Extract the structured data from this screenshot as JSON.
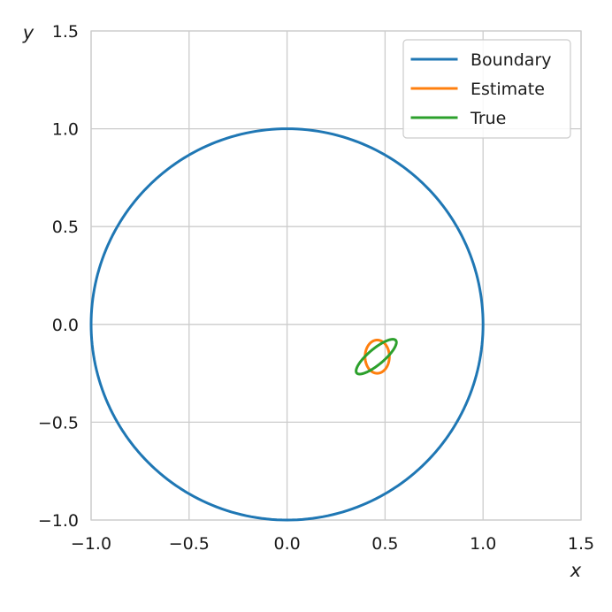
{
  "chart_data": {
    "type": "line",
    "title": "",
    "xlabel": "x",
    "ylabel": "y",
    "xlim": [
      -1.0,
      1.5
    ],
    "ylim": [
      -1.0,
      1.5
    ],
    "xticks": [
      -1.0,
      -0.5,
      0.0,
      0.5,
      1.0,
      1.5
    ],
    "yticks": [
      -1.0,
      -0.5,
      0.0,
      0.5,
      1.0,
      1.5
    ],
    "xtick_labels": [
      "−1.0",
      "−0.5",
      "0.0",
      "0.5",
      "1.0",
      "1.5"
    ],
    "ytick_labels": [
      "−1.0",
      "−0.5",
      "0.0",
      "0.5",
      "1.0",
      "1.5"
    ],
    "grid": true,
    "legend_position": "top-right",
    "series": [
      {
        "name": "Boundary",
        "color": "#1f77b4",
        "shape": "ellipse",
        "center": [
          0.0,
          0.0
        ],
        "semi_axes": [
          1.0,
          1.0
        ],
        "angle_deg": 0
      },
      {
        "name": "Estimate",
        "color": "#ff7f0e",
        "shape": "ellipse",
        "center": [
          0.46,
          -0.165
        ],
        "semi_axes": [
          0.085,
          0.062
        ],
        "angle_deg": 90
      },
      {
        "name": "True",
        "color": "#2ca02c",
        "shape": "ellipse",
        "center": [
          0.455,
          -0.165
        ],
        "semi_axes": [
          0.13,
          0.04
        ],
        "angle_deg": 40
      }
    ]
  }
}
